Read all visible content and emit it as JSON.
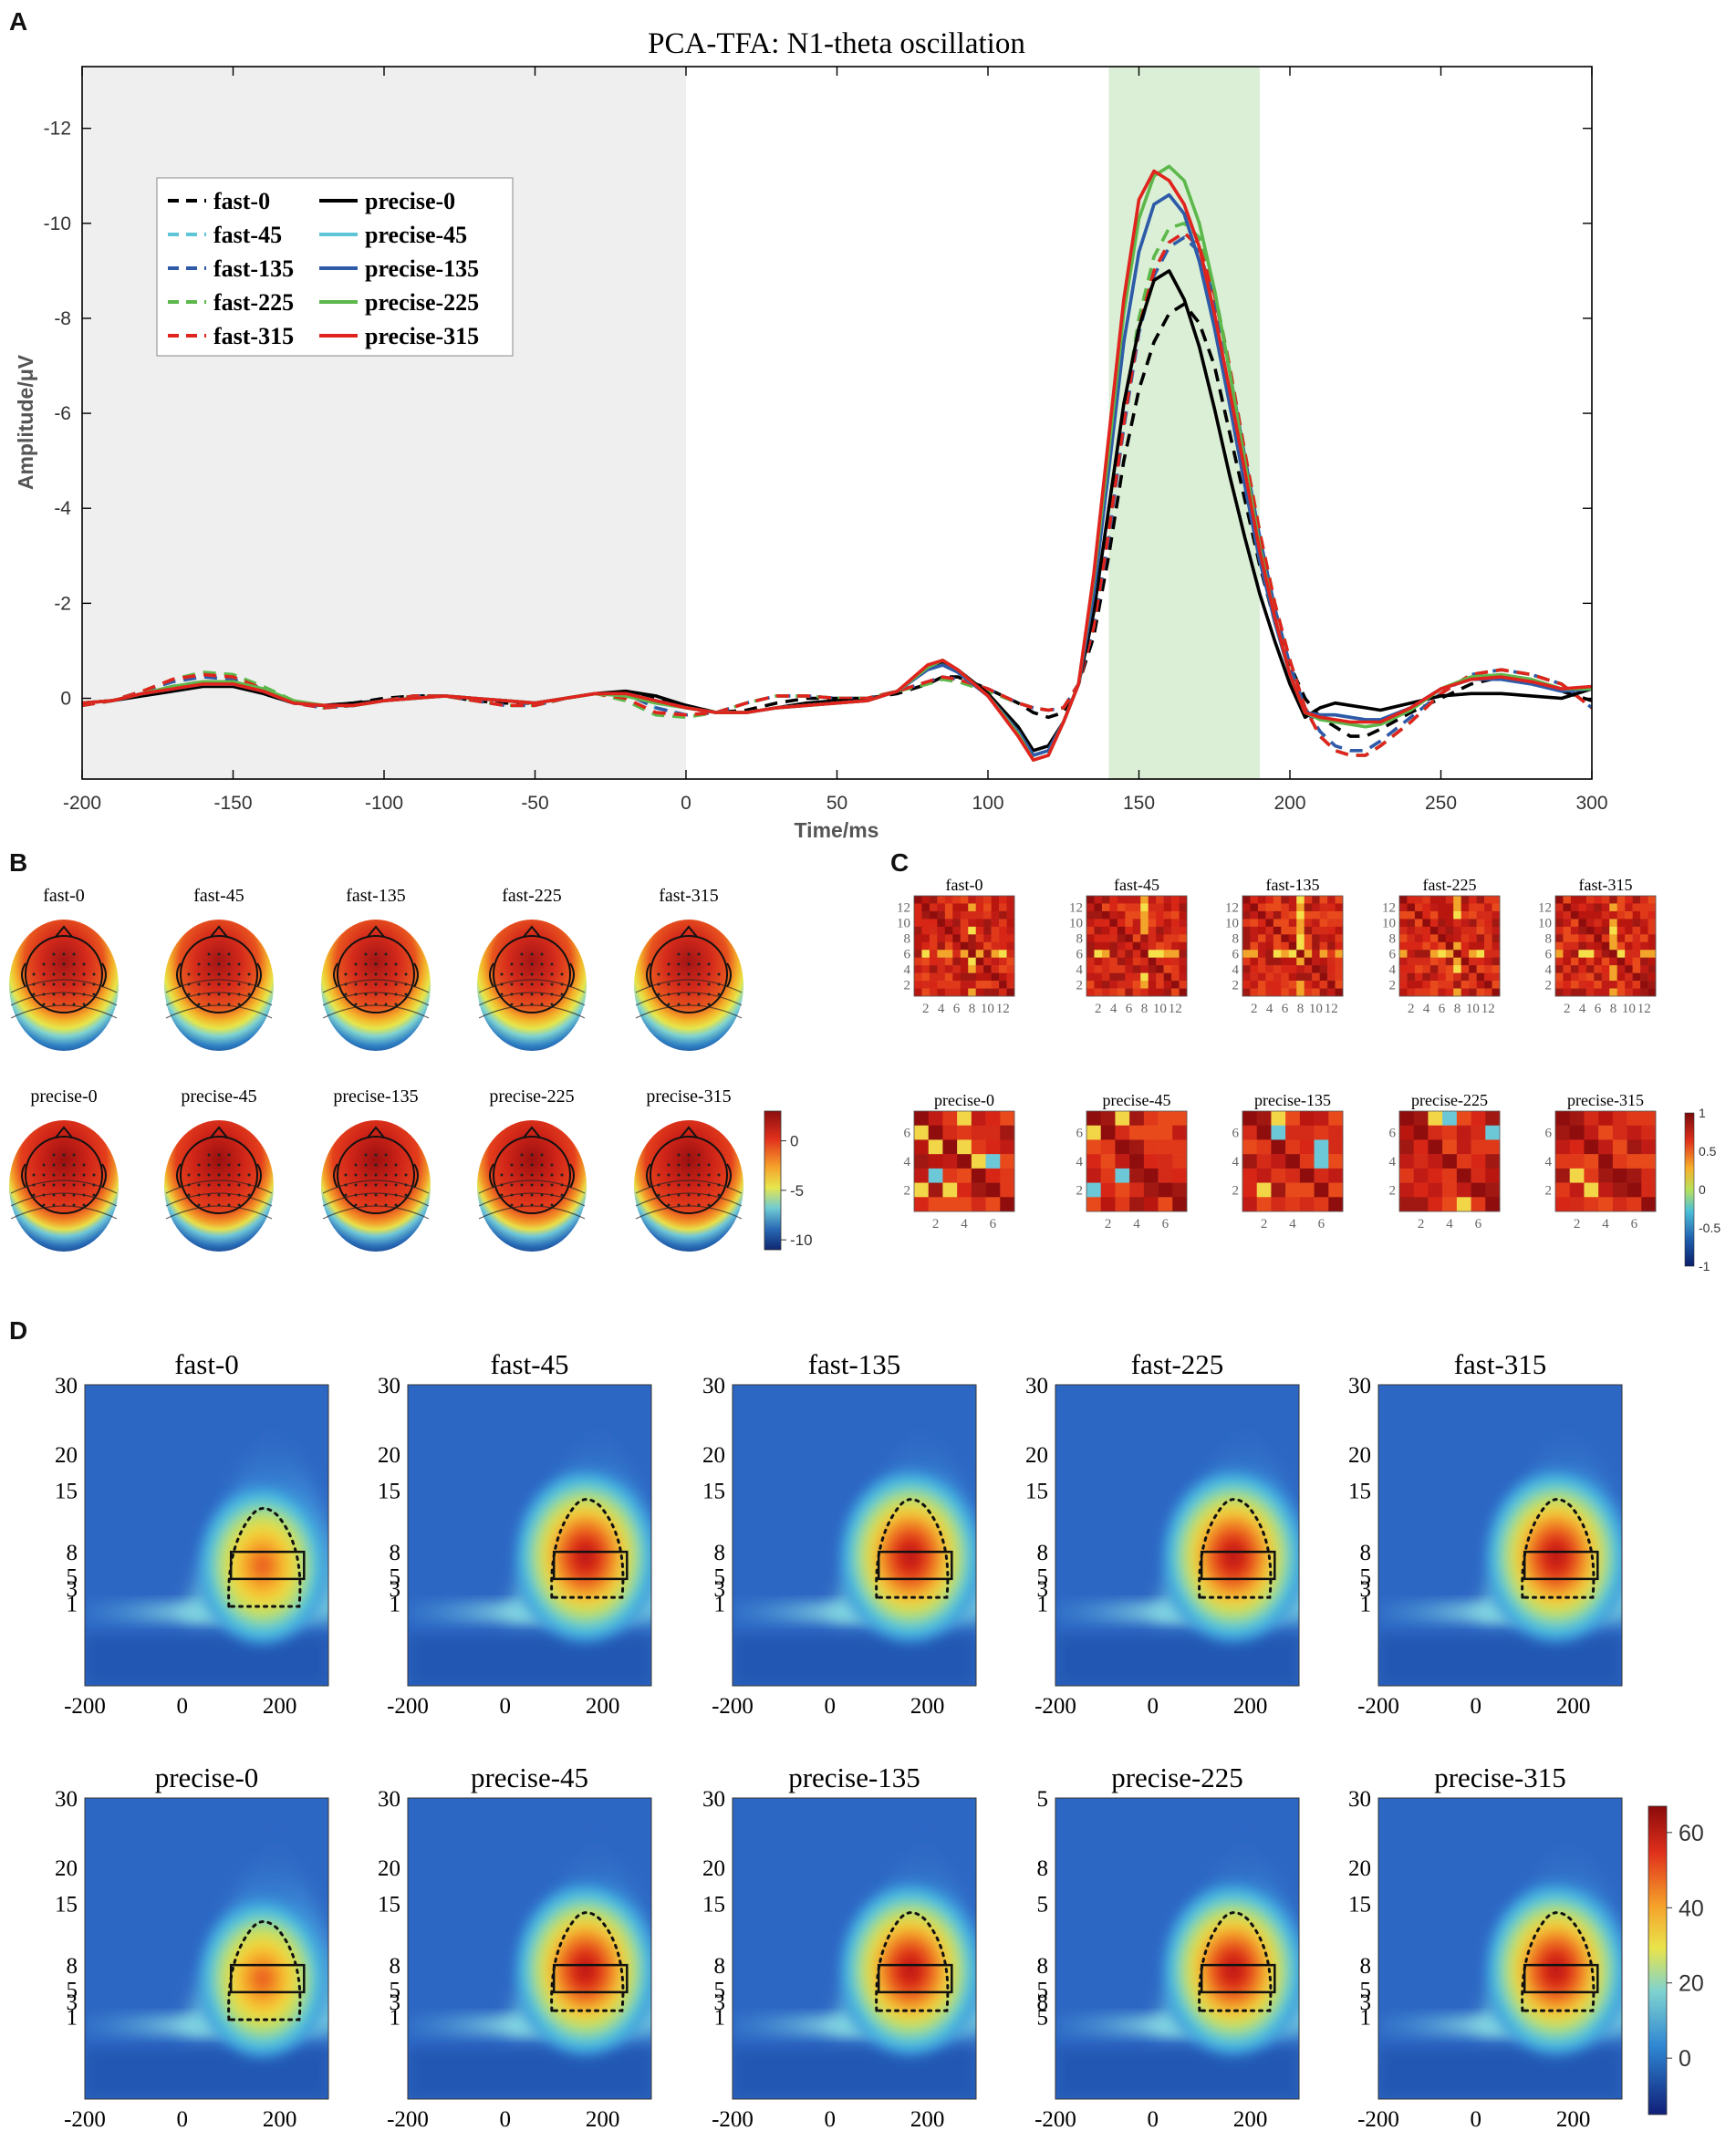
{
  "panel_labels": {
    "a": "A",
    "b": "B",
    "c": "C",
    "d": "D"
  },
  "colors": {
    "c0": "#000000",
    "c45": "#5ec4d6",
    "c135": "#2f5aa8",
    "c225": "#5cb84a",
    "c315": "#e0241d",
    "baseline_shade": "#efefef",
    "window_shade": "#dbefd6"
  },
  "chart_data": [
    {
      "type": "line",
      "title": "PCA-TFA: N1-theta oscillation",
      "xlabel": "Time/ms",
      "ylabel": "Amplitude/μV",
      "xlim": [
        -200,
        300
      ],
      "ylim": [
        1.7,
        -13.3
      ],
      "xticks": [
        "-200",
        "-150",
        "-100",
        "-50",
        "0",
        "50",
        "100",
        "150",
        "200",
        "250",
        "300"
      ],
      "yticks": [
        "-12",
        "-10",
        "-8",
        "-6",
        "-4",
        "-2",
        "0"
      ],
      "shaded_baseline": [
        -200,
        0
      ],
      "shaded_window": [
        140,
        190
      ],
      "x": [
        -200,
        -190,
        -180,
        -170,
        -160,
        -150,
        -140,
        -130,
        -120,
        -110,
        -100,
        -90,
        -80,
        -70,
        -60,
        -50,
        -40,
        -30,
        -20,
        -10,
        0,
        10,
        20,
        30,
        40,
        50,
        60,
        70,
        80,
        85,
        90,
        100,
        110,
        115,
        120,
        125,
        130,
        135,
        140,
        145,
        150,
        155,
        160,
        165,
        170,
        175,
        180,
        185,
        190,
        195,
        200,
        205,
        210,
        215,
        220,
        225,
        230,
        240,
        250,
        260,
        270,
        280,
        290,
        300
      ],
      "series": [
        {
          "name": "fast-0",
          "style": "dashed",
          "color_key": "c0",
          "values": [
            0.1,
            0.05,
            -0.1,
            -0.25,
            -0.35,
            -0.3,
            -0.1,
            0.1,
            0.15,
            0.1,
            0.0,
            -0.05,
            -0.05,
            0.05,
            0.1,
            0.1,
            0.0,
            -0.1,
            -0.1,
            0.0,
            0.15,
            0.3,
            0.25,
            0.1,
            0.0,
            0.0,
            0.0,
            -0.1,
            -0.3,
            -0.45,
            -0.45,
            -0.2,
            0.1,
            0.3,
            0.4,
            0.3,
            -0.3,
            -1.3,
            -3.0,
            -5.0,
            -6.5,
            -7.5,
            -8.1,
            -8.3,
            -7.9,
            -7.0,
            -5.6,
            -4.2,
            -2.8,
            -1.6,
            -0.7,
            0.0,
            0.4,
            0.6,
            0.8,
            0.8,
            0.65,
            0.3,
            0.0,
            -0.3,
            -0.45,
            -0.35,
            -0.15,
            0.05
          ]
        },
        {
          "name": "fast-45",
          "style": "dashed",
          "color_key": "c45",
          "values": [
            0.15,
            0.05,
            -0.15,
            -0.35,
            -0.5,
            -0.45,
            -0.2,
            0.1,
            0.2,
            0.15,
            0.05,
            -0.05,
            -0.05,
            0.05,
            0.15,
            0.15,
            0.0,
            -0.1,
            -0.1,
            0.2,
            0.35,
            0.3,
            0.1,
            -0.05,
            -0.05,
            0.0,
            0.0,
            -0.15,
            -0.35,
            -0.45,
            -0.4,
            -0.2,
            0.1,
            0.2,
            0.25,
            0.2,
            -0.3,
            -1.5,
            -3.5,
            -5.8,
            -7.8,
            -9.0,
            -9.6,
            -9.8,
            -9.5,
            -8.5,
            -7.0,
            -5.2,
            -3.5,
            -2.0,
            -0.8,
            0.2,
            0.8,
            1.1,
            1.2,
            1.2,
            1.0,
            0.5,
            -0.1,
            -0.5,
            -0.6,
            -0.5,
            -0.3,
            0.2
          ]
        },
        {
          "name": "fast-135",
          "style": "dashed",
          "color_key": "c135",
          "values": [
            0.15,
            0.05,
            -0.15,
            -0.35,
            -0.45,
            -0.4,
            -0.2,
            0.1,
            0.2,
            0.15,
            0.05,
            -0.05,
            -0.05,
            0.05,
            0.15,
            0.15,
            0.0,
            -0.1,
            -0.1,
            0.2,
            0.35,
            0.3,
            0.1,
            -0.05,
            -0.05,
            0.0,
            0.0,
            -0.15,
            -0.35,
            -0.45,
            -0.4,
            -0.2,
            0.1,
            0.2,
            0.25,
            0.2,
            -0.3,
            -1.5,
            -3.4,
            -5.7,
            -7.7,
            -8.9,
            -9.5,
            -9.7,
            -9.4,
            -8.4,
            -6.9,
            -5.1,
            -3.4,
            -1.9,
            -0.7,
            0.2,
            0.7,
            1.0,
            1.1,
            1.1,
            0.9,
            0.4,
            -0.1,
            -0.5,
            -0.6,
            -0.5,
            -0.3,
            0.2
          ]
        },
        {
          "name": "fast-225",
          "style": "dashed",
          "color_key": "c225",
          "values": [
            0.15,
            0.05,
            -0.15,
            -0.4,
            -0.55,
            -0.5,
            -0.25,
            0.05,
            0.2,
            0.15,
            0.05,
            -0.05,
            -0.05,
            0.05,
            0.15,
            0.15,
            0.0,
            -0.1,
            0.05,
            0.35,
            0.4,
            0.3,
            0.1,
            -0.05,
            -0.05,
            0.0,
            0.0,
            -0.15,
            -0.3,
            -0.4,
            -0.35,
            -0.15,
            0.1,
            0.2,
            0.25,
            0.2,
            -0.3,
            -1.6,
            -3.7,
            -6.0,
            -8.0,
            -9.3,
            -9.9,
            -10.0,
            -9.7,
            -8.6,
            -7.0,
            -5.2,
            -3.5,
            -2.0,
            -0.8,
            0.2,
            0.8,
            1.1,
            1.2,
            1.2,
            1.0,
            0.5,
            -0.1,
            -0.5,
            -0.6,
            -0.5,
            -0.3,
            0.2
          ]
        },
        {
          "name": "fast-315",
          "style": "dashed",
          "color_key": "c315",
          "values": [
            0.15,
            0.05,
            -0.15,
            -0.4,
            -0.5,
            -0.45,
            -0.2,
            0.1,
            0.2,
            0.15,
            0.05,
            -0.05,
            -0.05,
            0.05,
            0.15,
            0.15,
            0.0,
            -0.1,
            0.0,
            0.3,
            0.35,
            0.3,
            0.1,
            -0.05,
            -0.05,
            0.0,
            0.0,
            -0.15,
            -0.35,
            -0.45,
            -0.4,
            -0.2,
            0.1,
            0.2,
            0.25,
            0.2,
            -0.3,
            -1.5,
            -3.5,
            -5.8,
            -7.8,
            -9.0,
            -9.6,
            -9.8,
            -9.5,
            -8.5,
            -7.0,
            -5.2,
            -3.5,
            -2.0,
            -0.8,
            0.2,
            0.8,
            1.1,
            1.2,
            1.2,
            1.0,
            0.5,
            -0.1,
            -0.5,
            -0.6,
            -0.5,
            -0.3,
            0.2
          ]
        },
        {
          "name": "precise-0",
          "style": "solid",
          "color_key": "c0",
          "values": [
            0.1,
            0.05,
            -0.05,
            -0.15,
            -0.25,
            -0.25,
            -0.1,
            0.1,
            0.15,
            0.1,
            0.05,
            0.0,
            -0.05,
            0.0,
            0.05,
            0.1,
            0.0,
            -0.1,
            -0.15,
            -0.05,
            0.15,
            0.3,
            0.3,
            0.2,
            0.1,
            0.05,
            0.05,
            -0.15,
            -0.65,
            -0.75,
            -0.6,
            -0.1,
            0.6,
            1.1,
            1.0,
            0.5,
            -0.3,
            -1.8,
            -4.0,
            -6.2,
            -7.8,
            -8.8,
            -9.0,
            -8.4,
            -7.4,
            -6.1,
            -4.7,
            -3.4,
            -2.2,
            -1.2,
            -0.3,
            0.4,
            0.2,
            0.1,
            0.15,
            0.2,
            0.25,
            0.1,
            -0.05,
            -0.1,
            -0.1,
            -0.05,
            0.0,
            -0.2
          ]
        },
        {
          "name": "precise-45",
          "style": "solid",
          "color_key": "c45",
          "values": [
            0.1,
            0.05,
            -0.1,
            -0.2,
            -0.3,
            -0.3,
            -0.15,
            0.1,
            0.15,
            0.15,
            0.05,
            0.0,
            -0.05,
            0.0,
            0.05,
            0.1,
            0.0,
            -0.1,
            -0.1,
            0.05,
            0.2,
            0.3,
            0.3,
            0.2,
            0.15,
            0.1,
            0.05,
            -0.15,
            -0.6,
            -0.7,
            -0.55,
            -0.05,
            0.7,
            1.2,
            1.1,
            0.5,
            -0.3,
            -2.2,
            -4.8,
            -7.5,
            -9.4,
            -10.4,
            -10.6,
            -10.2,
            -9.2,
            -7.8,
            -6.2,
            -4.5,
            -2.9,
            -1.6,
            -0.5,
            0.3,
            0.35,
            0.35,
            0.4,
            0.45,
            0.45,
            0.2,
            -0.2,
            -0.4,
            -0.4,
            -0.3,
            -0.15,
            -0.2
          ]
        },
        {
          "name": "precise-135",
          "style": "solid",
          "color_key": "c135",
          "values": [
            0.1,
            0.05,
            -0.1,
            -0.2,
            -0.3,
            -0.3,
            -0.15,
            0.1,
            0.15,
            0.15,
            0.05,
            0.0,
            -0.05,
            0.0,
            0.05,
            0.1,
            0.0,
            -0.1,
            -0.1,
            0.05,
            0.2,
            0.3,
            0.3,
            0.2,
            0.15,
            0.1,
            0.05,
            -0.15,
            -0.6,
            -0.7,
            -0.55,
            -0.05,
            0.7,
            1.2,
            1.1,
            0.5,
            -0.3,
            -2.2,
            -4.8,
            -7.5,
            -9.4,
            -10.4,
            -10.6,
            -10.2,
            -9.2,
            -7.8,
            -6.2,
            -4.5,
            -2.9,
            -1.6,
            -0.5,
            0.3,
            0.35,
            0.35,
            0.4,
            0.45,
            0.45,
            0.2,
            -0.2,
            -0.4,
            -0.4,
            -0.3,
            -0.15,
            -0.2
          ]
        },
        {
          "name": "precise-225",
          "style": "solid",
          "color_key": "c225",
          "values": [
            0.1,
            0.05,
            -0.1,
            -0.25,
            -0.35,
            -0.35,
            -0.2,
            0.05,
            0.15,
            0.15,
            0.05,
            0.0,
            -0.05,
            0.0,
            0.05,
            0.1,
            0.0,
            -0.1,
            -0.05,
            0.1,
            0.2,
            0.3,
            0.3,
            0.2,
            0.15,
            0.1,
            0.05,
            -0.15,
            -0.65,
            -0.8,
            -0.6,
            -0.05,
            0.75,
            1.3,
            1.2,
            0.5,
            -0.3,
            -2.5,
            -5.2,
            -8.1,
            -10.1,
            -11.0,
            -11.2,
            -10.9,
            -10.0,
            -8.6,
            -6.9,
            -5.0,
            -3.2,
            -1.7,
            -0.5,
            0.3,
            0.45,
            0.5,
            0.55,
            0.6,
            0.55,
            0.25,
            -0.2,
            -0.45,
            -0.5,
            -0.4,
            -0.2,
            -0.2
          ]
        },
        {
          "name": "precise-315",
          "style": "solid",
          "color_key": "c315",
          "values": [
            0.1,
            0.05,
            -0.1,
            -0.2,
            -0.3,
            -0.3,
            -0.15,
            0.1,
            0.15,
            0.15,
            0.05,
            0.0,
            -0.05,
            0.0,
            0.05,
            0.1,
            0.0,
            -0.1,
            -0.1,
            0.05,
            0.2,
            0.3,
            0.3,
            0.2,
            0.15,
            0.1,
            0.05,
            -0.15,
            -0.7,
            -0.8,
            -0.6,
            -0.05,
            0.8,
            1.3,
            1.2,
            0.5,
            -0.3,
            -2.6,
            -5.5,
            -8.4,
            -10.5,
            -11.1,
            -10.9,
            -10.4,
            -9.5,
            -8.1,
            -6.5,
            -4.8,
            -3.1,
            -1.7,
            -0.5,
            0.3,
            0.4,
            0.45,
            0.5,
            0.5,
            0.5,
            0.2,
            -0.2,
            -0.4,
            -0.45,
            -0.35,
            -0.2,
            -0.25
          ]
        }
      ]
    },
    {
      "type": "topomap",
      "rows": [
        [
          "fast-0",
          "fast-45",
          "fast-135",
          "fast-225",
          "fast-315"
        ],
        [
          "precise-0",
          "precise-45",
          "precise-135",
          "precise-225",
          "precise-315"
        ]
      ],
      "colorbar_ticks": [
        "0",
        "-5",
        "-10"
      ],
      "colorbar_range": [
        -11,
        3
      ]
    },
    {
      "type": "heatmap",
      "rows": [
        {
          "titles": [
            "fast-0",
            "fast-45",
            "fast-135",
            "fast-225",
            "fast-315"
          ],
          "size": 13,
          "yticks": [
            "12",
            "10",
            "8",
            "6",
            "4",
            "2"
          ],
          "xticks": [
            "2",
            "4",
            "6",
            "8",
            "10",
            "12"
          ]
        },
        {
          "titles": [
            "precise-0",
            "precise-45",
            "precise-135",
            "precise-225",
            "precise-315"
          ],
          "size": 7,
          "yticks": [
            "6",
            "4",
            "2"
          ],
          "xticks": [
            "2",
            "4",
            "6"
          ]
        }
      ],
      "colorbar_ticks": [
        "1",
        "0.5",
        "0",
        "-0.5",
        "-1"
      ],
      "colorbar_range": [
        -1,
        1
      ]
    },
    {
      "type": "heatmap",
      "subtype": "time-frequency",
      "titles": [
        [
          "fast-0",
          "fast-45",
          "fast-135",
          "fast-225",
          "fast-315"
        ],
        [
          "precise-0",
          "precise-45",
          "precise-135",
          "precise-225",
          "precise-315"
        ]
      ],
      "xlim": [
        -200,
        300
      ],
      "xticks": [
        "-200",
        "0",
        "200"
      ],
      "yticks": [
        "30",
        "20",
        "15",
        "8",
        "5",
        "3",
        "1"
      ],
      "yticks_precise_225": [
        "5",
        "8",
        "5",
        "8",
        "5",
        "8",
        "5"
      ],
      "colorbar_ticks": [
        "60",
        "40",
        "20",
        "0"
      ],
      "colorbar_range": [
        -15,
        67
      ],
      "roi_box": {
        "time": [
          100,
          250
        ],
        "freq": [
          4,
          8
        ]
      }
    }
  ]
}
